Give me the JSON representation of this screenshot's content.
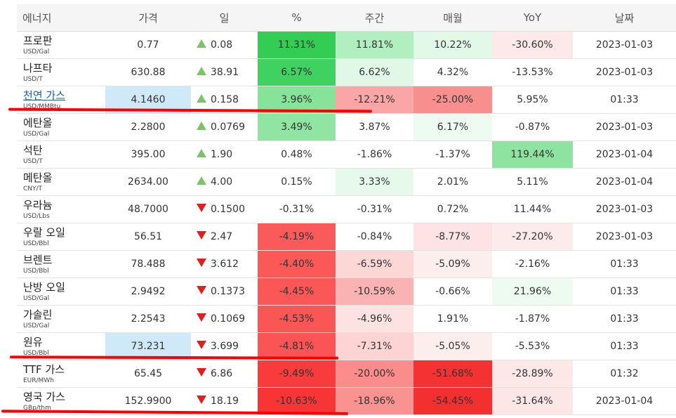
{
  "table": {
    "headers": [
      "에너지",
      "가격",
      "일",
      "%",
      "주간",
      "매월",
      "YoY",
      "날짜"
    ],
    "rows": [
      {
        "name": "프로판",
        "unit": "USD/Gal",
        "price": "0.77",
        "dir": "up",
        "change": "0.08",
        "pct": "11.31%",
        "weekly": "11.81%",
        "monthly": "10.22%",
        "yoy": "-30.60%",
        "date": "2023-01-03",
        "colors": {
          "price": "",
          "pct": "#32cd52",
          "weekly": "#b1efc1",
          "monthly": "#e3f9e8",
          "yoy": "#fde9e9"
        }
      },
      {
        "name": "나프타",
        "unit": "USD/T",
        "price": "630.88",
        "dir": "up",
        "change": "38.91",
        "pct": "6.57%",
        "weekly": "6.62%",
        "monthly": "4.32%",
        "yoy": "-13.53%",
        "date": "2023-01-03",
        "colors": {
          "price": "",
          "pct": "#3fd260",
          "weekly": "#e1f8e6",
          "monthly": "",
          "yoy": ""
        }
      },
      {
        "name": "천연 가스",
        "unit": "USD/MMBtu",
        "link": true,
        "price": "4.1460",
        "dir": "up",
        "change": "0.158",
        "pct": "3.96%",
        "weekly": "-12.21%",
        "monthly": "-25.00%",
        "yoy": "5.95%",
        "date": "01:33",
        "colors": {
          "price": "#cfe9f9",
          "pct": "#86e39a",
          "weekly": "#fba6a6",
          "monthly": "#f88f8f",
          "yoy": ""
        }
      },
      {
        "name": "에탄올",
        "unit": "USD/Gal",
        "price": "2.2800",
        "dir": "up",
        "change": "0.0769",
        "pct": "3.49%",
        "weekly": "3.87%",
        "monthly": "6.17%",
        "yoy": "-0.87%",
        "date": "2023-01-03",
        "colors": {
          "price": "",
          "pct": "#90e5a2",
          "weekly": "",
          "monthly": "#edfbf0",
          "yoy": ""
        }
      },
      {
        "name": "석탄",
        "unit": "USD/T",
        "price": "395.00",
        "dir": "up",
        "change": "1.90",
        "pct": "0.48%",
        "weekly": "-1.86%",
        "monthly": "-1.37%",
        "yoy": "119.44%",
        "date": "2023-01-04",
        "colors": {
          "price": "",
          "pct": "",
          "weekly": "",
          "monthly": "",
          "yoy": "#8fe3a0"
        }
      },
      {
        "name": "메탄올",
        "unit": "CNY/T",
        "price": "2634.00",
        "dir": "up",
        "change": "4.00",
        "pct": "0.15%",
        "weekly": "3.33%",
        "monthly": "2.01%",
        "yoy": "5.11%",
        "date": "2023-01-04",
        "colors": {
          "price": "",
          "pct": "",
          "weekly": "#e6f9ea",
          "monthly": "",
          "yoy": ""
        }
      },
      {
        "name": "우라늄",
        "unit": "USD/Lbs",
        "price": "48.7000",
        "dir": "down",
        "change": "0.1500",
        "pct": "-0.31%",
        "weekly": "-0.31%",
        "monthly": "0.72%",
        "yoy": "11.44%",
        "date": "2023-01-03",
        "colors": {
          "price": "",
          "pct": "",
          "weekly": "",
          "monthly": "",
          "yoy": ""
        }
      },
      {
        "name": "우랄 오일",
        "unit": "USD/Bbl",
        "price": "56.51",
        "dir": "down",
        "change": "2.47",
        "pct": "-4.19%",
        "weekly": "-0.84%",
        "monthly": "-8.77%",
        "yoy": "-27.20%",
        "date": "2023-01-03",
        "colors": {
          "price": "",
          "pct": "#fb5a5a",
          "weekly": "",
          "monthly": "#fde3e3",
          "yoy": "#fdeaea"
        }
      },
      {
        "name": "브렌트",
        "unit": "USD/Bbl",
        "price": "78.488",
        "dir": "down",
        "change": "3.612",
        "pct": "-4.40%",
        "weekly": "-6.59%",
        "monthly": "-5.09%",
        "yoy": "-2.16%",
        "date": "01:33",
        "colors": {
          "price": "",
          "pct": "#fb5858",
          "weekly": "#fdd6d6",
          "monthly": "#fdeeee",
          "yoy": ""
        }
      },
      {
        "name": "난방 오일",
        "unit": "USD/Gal",
        "price": "2.9492",
        "dir": "down",
        "change": "0.1373",
        "pct": "-4.45%",
        "weekly": "-10.59%",
        "monthly": "-0.66%",
        "yoy": "21.96%",
        "date": "01:33",
        "colors": {
          "price": "",
          "pct": "#fb5757",
          "weekly": "#fbb2b2",
          "monthly": "",
          "yoy": "#eefbf1"
        }
      },
      {
        "name": "가솔린",
        "unit": "USD/Gal",
        "price": "2.2543",
        "dir": "down",
        "change": "0.1069",
        "pct": "-4.53%",
        "weekly": "-4.96%",
        "monthly": "1.91%",
        "yoy": "-1.87%",
        "date": "01:33",
        "colors": {
          "price": "",
          "pct": "#fb5656",
          "weekly": "#fde2e2",
          "monthly": "",
          "yoy": ""
        }
      },
      {
        "name": "원유",
        "unit": "USD/Bbl",
        "price": "73.231",
        "dir": "down",
        "change": "3.699",
        "pct": "-4.81%",
        "weekly": "-7.31%",
        "monthly": "-5.05%",
        "yoy": "-5.53%",
        "date": "01:33",
        "colors": {
          "price": "#cfe9f9",
          "pct": "#fb5454",
          "weekly": "#fdd3d3",
          "monthly": "#fdeeee",
          "yoy": ""
        }
      },
      {
        "name": "TTF 가스",
        "unit": "EUR/MWh",
        "price": "65.45",
        "dir": "down",
        "change": "6.86",
        "pct": "-9.49%",
        "weekly": "-20.00%",
        "monthly": "-51.68%",
        "yoy": "-28.89%",
        "date": "01:32",
        "colors": {
          "price": "",
          "pct": "#f83b3b",
          "weekly": "#fa8c8c",
          "monthly": "#f43232",
          "yoy": "#fde8e8"
        }
      },
      {
        "name": "영국 가스",
        "unit": "GBp/thm",
        "price": "152.9900",
        "dir": "down",
        "change": "18.19",
        "pct": "-10.63%",
        "weekly": "-18.96%",
        "monthly": "-54.45%",
        "yoy": "-31.64%",
        "date": "2023-01-04",
        "colors": {
          "price": "",
          "pct": "#f73535",
          "weekly": "#fa9292",
          "monthly": "#f32f2f",
          "yoy": "#fde6e6"
        }
      }
    ]
  }
}
